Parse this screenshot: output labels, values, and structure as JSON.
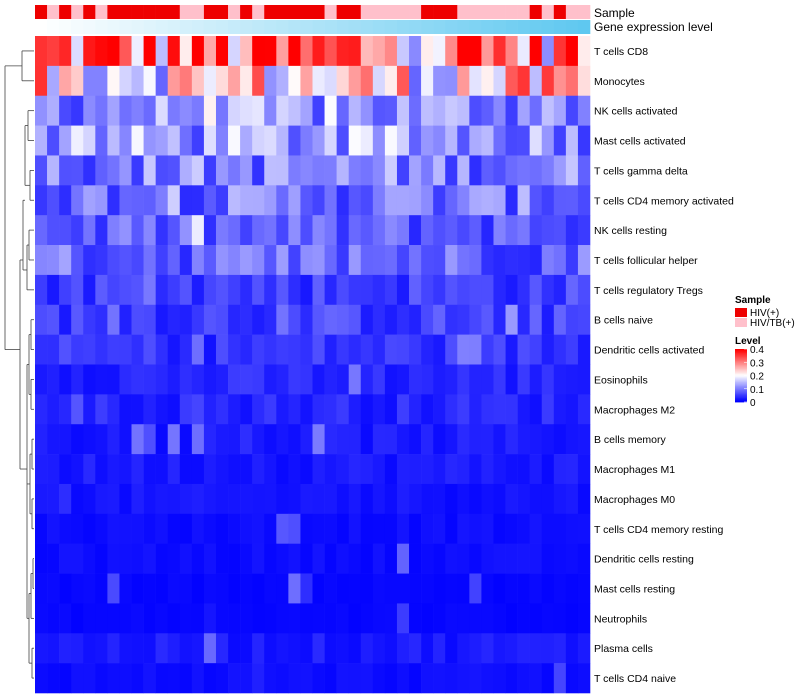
{
  "chart_data": {
    "type": "heatmap",
    "annotations": {
      "sample_label": "Sample",
      "expression_label": "Gene expression level",
      "sample_pattern": [
        1,
        0,
        1,
        0,
        1,
        0,
        1,
        1,
        1,
        1,
        1,
        1,
        0,
        0,
        1,
        1,
        0,
        1,
        0,
        1,
        1,
        1,
        1,
        1,
        0,
        1,
        1,
        0,
        0,
        0,
        0,
        0,
        1,
        1,
        1,
        0,
        0,
        0,
        0,
        0,
        0,
        1,
        0,
        1,
        0,
        0
      ]
    },
    "rows": [
      {
        "name": "T cells CD8",
        "level": 0.3
      },
      {
        "name": "Monocytes",
        "level": 0.22
      },
      {
        "name": "NK cells activated",
        "level": 0.11
      },
      {
        "name": "Mast cells activated",
        "level": 0.12
      },
      {
        "name": "T cells gamma delta",
        "level": 0.1
      },
      {
        "name": "T cells CD4 memory activated",
        "level": 0.09
      },
      {
        "name": "NK cells resting",
        "level": 0.07
      },
      {
        "name": "T cells follicular helper",
        "level": 0.08
      },
      {
        "name": "T cells regulatory  Tregs",
        "level": 0.05
      },
      {
        "name": "B cells naive",
        "level": 0.05
      },
      {
        "name": "Dendritic cells activated",
        "level": 0.04
      },
      {
        "name": "Eosinophils",
        "level": 0.03
      },
      {
        "name": "Macrophages M2",
        "level": 0.03
      },
      {
        "name": "B cells memory",
        "level": 0.02
      },
      {
        "name": "Macrophages M1",
        "level": 0.02
      },
      {
        "name": "Macrophages M0",
        "level": 0.015
      },
      {
        "name": "T cells CD4 memory resting",
        "level": 0.01
      },
      {
        "name": "Dendritic cells resting",
        "level": 0.01
      },
      {
        "name": "Mast cells resting",
        "level": 0.005
      },
      {
        "name": "Neutrophils",
        "level": 0.005
      },
      {
        "name": "Plasma cells",
        "level": 0.02
      },
      {
        "name": "T cells CD4 naive",
        "level": 0.01
      }
    ],
    "n_columns": 46,
    "legend": {
      "sample_title": "Sample",
      "sample_entries": [
        {
          "label": "HIV(+)",
          "color": "#ee0000"
        },
        {
          "label": "HIV/TB(+)",
          "color": "#ffc0cb"
        }
      ],
      "level_title": "Level",
      "level_ticks": [
        "0.4",
        "0.3",
        "0.2",
        "0.1",
        "0"
      ],
      "range": [
        0,
        0.4
      ]
    },
    "colors": {
      "low": "#0000ff",
      "mid": "#ffffff",
      "high": "#ff0000",
      "expr_bar_start": "#ffffff",
      "expr_bar_end": "#5fc8f0"
    }
  }
}
